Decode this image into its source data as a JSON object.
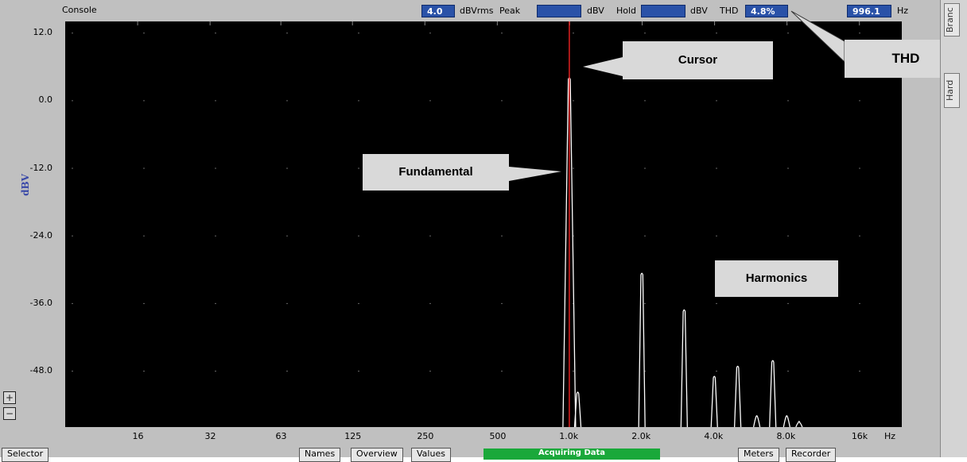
{
  "header": {
    "console_tab": "Console",
    "readouts": [
      {
        "value": "4.0",
        "unit": "dBVrms"
      },
      {
        "label": "Peak",
        "value": "",
        "unit": "dBV"
      },
      {
        "label": "Hold",
        "value": "",
        "unit": "dBV"
      },
      {
        "label": "THD",
        "value": "4.8%"
      },
      {
        "value": "996.1",
        "unit": "Hz"
      }
    ]
  },
  "chart_data": {
    "type": "line",
    "ylabel": "dBV",
    "xlabel": "Hz",
    "yticks": [
      "12.0",
      "0.0",
      "-12.0",
      "-24.0",
      "-36.0",
      "-48.0"
    ],
    "xticks": [
      "16",
      "32",
      "63",
      "125",
      "250",
      "500",
      "1.0k",
      "2.0k",
      "4.0k",
      "8.0k",
      "16k"
    ],
    "ylim": [
      -58,
      14
    ],
    "xlim": [
      8,
      24000
    ],
    "xscale": "log",
    "grid": true,
    "cursor_freq": 996.1,
    "series": [
      {
        "peaks": [
          {
            "f": 996,
            "db": 4.0
          },
          {
            "f": 1080,
            "db": -51.8
          },
          {
            "f": 1995,
            "db": -30.7
          },
          {
            "f": 2990,
            "db": -37.2
          },
          {
            "f": 3990,
            "db": -49.0
          },
          {
            "f": 4990,
            "db": -47.2
          },
          {
            "f": 5990,
            "db": -56.0
          },
          {
            "f": 6980,
            "db": -46.2
          },
          {
            "f": 7980,
            "db": -56.0
          },
          {
            "f": 8980,
            "db": -57.0
          }
        ]
      }
    ],
    "colors": {
      "background": "#000000",
      "trace": "#ffffff",
      "cursor": "#e02020",
      "grid": "#666666"
    }
  },
  "annotations": {
    "cursor": "Cursor",
    "thd": "THD",
    "fundamental": "Fundamental",
    "harmonics": "Harmonics"
  },
  "sidebar_tabs": [
    "Branc",
    "Hard"
  ],
  "bottom": {
    "left_tab": "Selector",
    "tabs_center": [
      "Names",
      "Overview",
      "Values"
    ],
    "status": "Acquiring Data",
    "tabs_right": [
      "Meters",
      "Recorder"
    ]
  },
  "zoom_icons": [
    "zoom-in-icon",
    "zoom-out-icon"
  ]
}
